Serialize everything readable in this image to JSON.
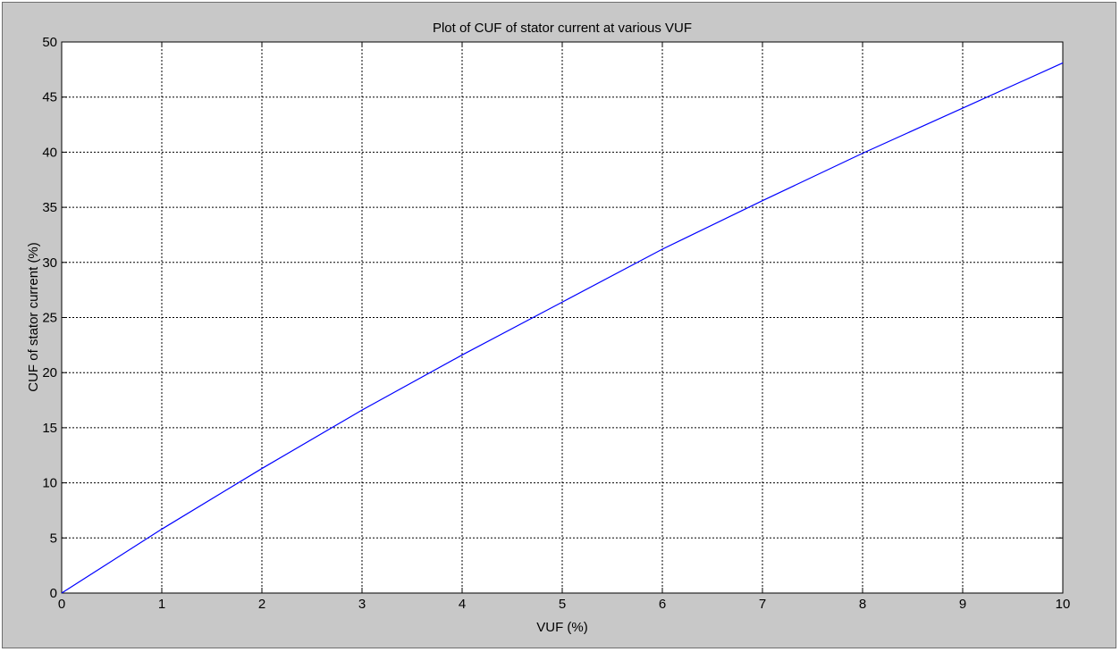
{
  "chart_data": {
    "type": "line",
    "title": "Plot of CUF of stator current at various VUF",
    "xlabel": "VUF (%)",
    "ylabel": "CUF of stator current (%)",
    "xlim": [
      0,
      10
    ],
    "ylim": [
      0,
      50
    ],
    "xticks": [
      0,
      1,
      2,
      3,
      4,
      5,
      6,
      7,
      8,
      9,
      10
    ],
    "yticks": [
      0,
      5,
      10,
      15,
      20,
      25,
      30,
      35,
      40,
      45,
      50
    ],
    "grid": true,
    "series": [
      {
        "color": "#0000ff",
        "x": [
          0,
          1,
          2,
          3,
          4,
          5,
          6,
          7,
          8,
          9,
          10
        ],
        "y": [
          0,
          5.8,
          11.3,
          16.6,
          21.6,
          26.4,
          31.2,
          35.6,
          39.9,
          44.0,
          48.1
        ]
      }
    ]
  },
  "colors": {
    "figure_background": "#c8c8c8",
    "axes_background": "#ffffff",
    "grid": "#000000",
    "line": "#0000ff"
  }
}
